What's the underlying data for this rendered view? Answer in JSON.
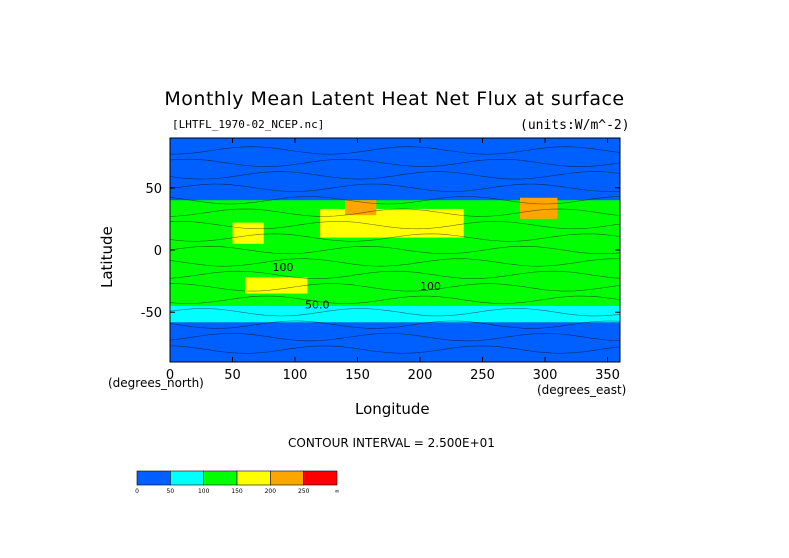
{
  "chart_data": {
    "type": "heatmap",
    "title": "Monthly Mean Latent Heat Net Flux at surface",
    "source_label": "[LHTFL_1970-02_NCEP.nc]",
    "units_label": "(units:W/m^-2)",
    "xlabel": "Longitude",
    "ylabel": "Latitude",
    "xunit_label": "(degrees_east)",
    "yunit_label": "(degrees_north)",
    "xlim": [
      0,
      360
    ],
    "ylim": [
      -90,
      90
    ],
    "x_ticks": [
      0,
      50,
      100,
      150,
      200,
      250,
      300,
      350
    ],
    "y_ticks": [
      -50,
      0,
      50
    ],
    "contour_interval_text": "CONTOUR INTERVAL = 2.500E+01",
    "contour_labels": [
      {
        "text": "100",
        "lon": 82,
        "lat": -17
      },
      {
        "text": "100",
        "lon": 200,
        "lat": -32
      },
      {
        "text": "50.0",
        "lon": 108,
        "lat": -47
      }
    ],
    "colorbar": {
      "boundaries": [
        "0",
        "50",
        "100",
        "150",
        "200",
        "250",
        "∞"
      ],
      "colors": [
        "#0060ff",
        "#00ffff",
        "#00ff00",
        "#ffff00",
        "#ffa500",
        "#ff0000"
      ]
    },
    "regions": [
      {
        "name": "polar-south",
        "lon": [
          0,
          360
        ],
        "lat": [
          -90,
          -58
        ],
        "level": 0
      },
      {
        "name": "southern-ocean-cyan",
        "lon": [
          0,
          360
        ],
        "lat": [
          -58,
          -45
        ],
        "level": 1
      },
      {
        "name": "south-subtropics-green",
        "lon": [
          0,
          360
        ],
        "lat": [
          -45,
          -5
        ],
        "level": 2
      },
      {
        "name": "equatorial-green",
        "lon": [
          0,
          360
        ],
        "lat": [
          -5,
          15
        ],
        "level": 2
      },
      {
        "name": "north-pacific-subtropic",
        "lon": [
          120,
          235
        ],
        "lat": [
          10,
          33
        ],
        "level": 3
      },
      {
        "name": "kuroshio",
        "lon": [
          140,
          165
        ],
        "lat": [
          28,
          40
        ],
        "level": 4
      },
      {
        "name": "gulf-stream",
        "lon": [
          280,
          310
        ],
        "lat": [
          25,
          42
        ],
        "level": 4
      },
      {
        "name": "arabian-sea",
        "lon": [
          50,
          75
        ],
        "lat": [
          5,
          22
        ],
        "level": 3
      },
      {
        "name": "south-indian",
        "lon": [
          60,
          110
        ],
        "lat": [
          -35,
          -22
        ],
        "level": 3
      },
      {
        "name": "north-cold",
        "lon": [
          0,
          360
        ],
        "lat": [
          40,
          90
        ],
        "level": 0
      }
    ]
  }
}
